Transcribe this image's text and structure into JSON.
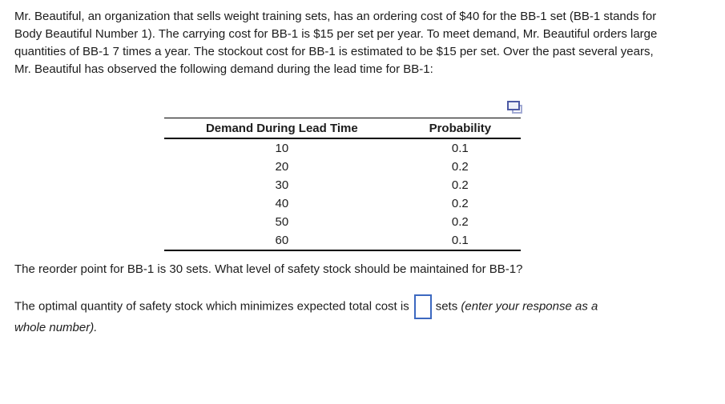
{
  "problem": {
    "intro": "Mr. Beautiful, an organization that sells weight training sets, has an ordering cost of $40 for the BB-1 set (BB-1 stands for Body Beautiful Number 1). The carrying cost for BB-1 is $15 per set per year. To meet demand, Mr. Beautiful orders large quantities of BB-1 7 times a year. The stockout cost for BB-1 is estimated to be $15 per set. Over the past several years, Mr. Beautiful has observed the following demand during the lead time for BB-1:",
    "question": "The reorder point for BB-1 is 30 sets. What level of safety stock should be maintained for BB-1?",
    "answer_prefix": "The optimal quantity of safety stock which minimizes expected total cost is",
    "answer_value": "",
    "answer_unit": "sets",
    "answer_instruction": "(enter your response as a whole number)."
  },
  "table": {
    "headers": [
      "Demand During Lead Time",
      "Probability"
    ],
    "rows": [
      [
        "10",
        "0.1"
      ],
      [
        "20",
        "0.2"
      ],
      [
        "30",
        "0.2"
      ],
      [
        "40",
        "0.2"
      ],
      [
        "50",
        "0.2"
      ],
      [
        "60",
        "0.1"
      ]
    ]
  },
  "icons": {
    "copy_icon": "copy-icon"
  },
  "colors": {
    "text": "#1c1c1c",
    "table_lines": "#000000",
    "input_border": "#3c68c0",
    "copy_icon_front": "#4c59a4",
    "copy_icon_back": "#a3abd4",
    "background": "#ffffff"
  }
}
